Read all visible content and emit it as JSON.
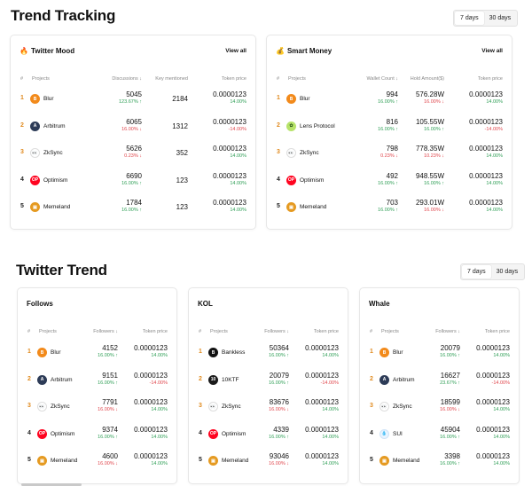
{
  "trend_tracking": {
    "title": "Trend Tracking",
    "range": [
      "7 days",
      "30 days"
    ],
    "cards": [
      {
        "title": "Twitter Mood",
        "emoji": "🔥",
        "view_all": "View all",
        "headers": [
          "#",
          "Projects",
          "Discussions ↓",
          "Key mentioned",
          "Token price"
        ],
        "rows": [
          {
            "rank": "1",
            "name": "Blur",
            "icon": "blur",
            "a": "5045",
            "a_sub": "123.67% ↑",
            "a_dir": "up",
            "b": "2184",
            "price": "0.0000123",
            "price_sub": "14.00%",
            "price_dir": "up"
          },
          {
            "rank": "2",
            "name": "Arbitrum",
            "icon": "arbitrum",
            "a": "6065",
            "a_sub": "16.00% ↓",
            "a_dir": "down",
            "b": "1312",
            "price": "0.0000123",
            "price_sub": "-14.00%",
            "price_dir": "down"
          },
          {
            "rank": "3",
            "name": "ZkSync",
            "icon": "zksync",
            "a": "5626",
            "a_sub": "0.23% ↓",
            "a_dir": "down",
            "b": "352",
            "price": "0.0000123",
            "price_sub": "14.00%",
            "price_dir": "up"
          },
          {
            "rank": "4",
            "name": "Optimism",
            "icon": "optimism",
            "a": "6690",
            "a_sub": "16.00% ↑",
            "a_dir": "up",
            "b": "123",
            "price": "0.0000123",
            "price_sub": "14.00%",
            "price_dir": "up"
          },
          {
            "rank": "5",
            "name": "Memeland",
            "icon": "memeland",
            "a": "1784",
            "a_sub": "16.00% ↑",
            "a_dir": "up",
            "b": "123",
            "price": "0.0000123",
            "price_sub": "14.00%",
            "price_dir": "up"
          }
        ]
      },
      {
        "title": "Smart Money",
        "emoji": "💰",
        "view_all": "View all",
        "headers": [
          "#",
          "Projects",
          "Wallet Count ↓",
          "Hold Amount($)",
          "Token price"
        ],
        "rows": [
          {
            "rank": "1",
            "name": "Blur",
            "icon": "blur",
            "a": "994",
            "a_sub": "16.00% ↑",
            "a_dir": "up",
            "b": "576.28W",
            "b_sub": "16.00% ↓",
            "b_dir": "down",
            "price": "0.0000123",
            "price_sub": "14.00%",
            "price_dir": "up"
          },
          {
            "rank": "2",
            "name": "Lens Protocol",
            "icon": "lens",
            "a": "816",
            "a_sub": "16.00% ↑",
            "a_dir": "up",
            "b": "105.55W",
            "b_sub": "16.00% ↑",
            "b_dir": "up",
            "price": "0.0000123",
            "price_sub": "-14.00%",
            "price_dir": "down"
          },
          {
            "rank": "3",
            "name": "ZkSync",
            "icon": "zksync",
            "a": "798",
            "a_sub": "0.23% ↓",
            "a_dir": "down",
            "b": "778.35W",
            "b_sub": "10.23% ↓",
            "b_dir": "down",
            "price": "0.0000123",
            "price_sub": "14.00%",
            "price_dir": "up"
          },
          {
            "rank": "4",
            "name": "Optimism",
            "icon": "optimism",
            "a": "492",
            "a_sub": "16.00% ↑",
            "a_dir": "up",
            "b": "948.55W",
            "b_sub": "16.00% ↑",
            "b_dir": "up",
            "price": "0.0000123",
            "price_sub": "14.00%",
            "price_dir": "up"
          },
          {
            "rank": "5",
            "name": "Memeland",
            "icon": "memeland",
            "a": "703",
            "a_sub": "16.00% ↑",
            "a_dir": "up",
            "b": "293.01W",
            "b_sub": "16.00% ↓",
            "b_dir": "down",
            "price": "0.0000123",
            "price_sub": "14.00%",
            "price_dir": "up"
          }
        ]
      }
    ]
  },
  "twitter_trend": {
    "title": "Twitter Trend",
    "range": [
      "7 days",
      "30 days"
    ],
    "cards": [
      {
        "title": "Follows",
        "headers": [
          "#",
          "Projects",
          "Followers ↓",
          "Token price"
        ],
        "rows": [
          {
            "rank": "1",
            "name": "Blur",
            "icon": "blur",
            "a": "4152",
            "a_sub": "16.00% ↑",
            "a_dir": "up",
            "price": "0.0000123",
            "price_sub": "14.00%",
            "price_dir": "up"
          },
          {
            "rank": "2",
            "name": "Arbitrum",
            "icon": "arbitrum",
            "a": "9151",
            "a_sub": "16.00% ↑",
            "a_dir": "up",
            "price": "0.0000123",
            "price_sub": "-14.00%",
            "price_dir": "down"
          },
          {
            "rank": "3",
            "name": "ZkSync",
            "icon": "zksync",
            "a": "7791",
            "a_sub": "16.00% ↓",
            "a_dir": "down",
            "price": "0.0000123",
            "price_sub": "14.00%",
            "price_dir": "up"
          },
          {
            "rank": "4",
            "name": "Optimism",
            "icon": "optimism",
            "a": "9374",
            "a_sub": "16.00% ↑",
            "a_dir": "up",
            "price": "0.0000123",
            "price_sub": "14.00%",
            "price_dir": "up"
          },
          {
            "rank": "5",
            "name": "Memeland",
            "icon": "memeland",
            "a": "4600",
            "a_sub": "16.00% ↓",
            "a_dir": "down",
            "price": "0.0000123",
            "price_sub": "14.00%",
            "price_dir": "up"
          }
        ]
      },
      {
        "title": "KOL",
        "headers": [
          "#",
          "Projects",
          "Followers ↓",
          "Token price"
        ],
        "rows": [
          {
            "rank": "1",
            "name": "Bankless",
            "icon": "bankless",
            "a": "50364",
            "a_sub": "16.00% ↑",
            "a_dir": "up",
            "price": "0.0000123",
            "price_sub": "14.00%",
            "price_dir": "up"
          },
          {
            "rank": "2",
            "name": "10KTF",
            "icon": "tenktf",
            "a": "20079",
            "a_sub": "16.00% ↑",
            "a_dir": "up",
            "price": "0.0000123",
            "price_sub": "-14.00%",
            "price_dir": "down"
          },
          {
            "rank": "3",
            "name": "ZkSync",
            "icon": "zksync",
            "a": "83676",
            "a_sub": "16.00% ↓",
            "a_dir": "down",
            "price": "0.0000123",
            "price_sub": "14.00%",
            "price_dir": "up"
          },
          {
            "rank": "4",
            "name": "Optimism",
            "icon": "optimism",
            "a": "4339",
            "a_sub": "16.00% ↑",
            "a_dir": "up",
            "price": "0.0000123",
            "price_sub": "14.00%",
            "price_dir": "up"
          },
          {
            "rank": "5",
            "name": "Memeland",
            "icon": "memeland",
            "a": "93046",
            "a_sub": "16.00% ↓",
            "a_dir": "down",
            "price": "0.0000123",
            "price_sub": "14.00%",
            "price_dir": "up"
          }
        ]
      },
      {
        "title": "Whale",
        "headers": [
          "#",
          "Projects",
          "Followers ↓",
          "Token price"
        ],
        "rows": [
          {
            "rank": "1",
            "name": "Blur",
            "icon": "blur",
            "a": "20079",
            "a_sub": "16.00% ↑",
            "a_dir": "up",
            "price": "0.0000123",
            "price_sub": "14.00%",
            "price_dir": "up"
          },
          {
            "rank": "2",
            "name": "Arbitrum",
            "icon": "arbitrum",
            "a": "16627",
            "a_sub": "23.67% ↑",
            "a_dir": "up",
            "price": "0.0000123",
            "price_sub": "-14.00%",
            "price_dir": "down"
          },
          {
            "rank": "3",
            "name": "ZkSync",
            "icon": "zksync",
            "a": "18599",
            "a_sub": "16.00% ↓",
            "a_dir": "down",
            "price": "0.0000123",
            "price_sub": "14.00%",
            "price_dir": "up"
          },
          {
            "rank": "4",
            "name": "SUI",
            "icon": "sui",
            "a": "45904",
            "a_sub": "16.00% ↑",
            "a_dir": "up",
            "price": "0.0000123",
            "price_sub": "14.00%",
            "price_dir": "up"
          },
          {
            "rank": "5",
            "name": "Memeland",
            "icon": "memeland",
            "a": "3398",
            "a_sub": "16.00% ↑",
            "a_dir": "up",
            "price": "0.0000123",
            "price_sub": "14.00%",
            "price_dir": "up"
          }
        ]
      }
    ]
  },
  "colors": {
    "accent_rank": "#e08a1e",
    "up": "#2e9e55",
    "down": "#e0464c"
  }
}
